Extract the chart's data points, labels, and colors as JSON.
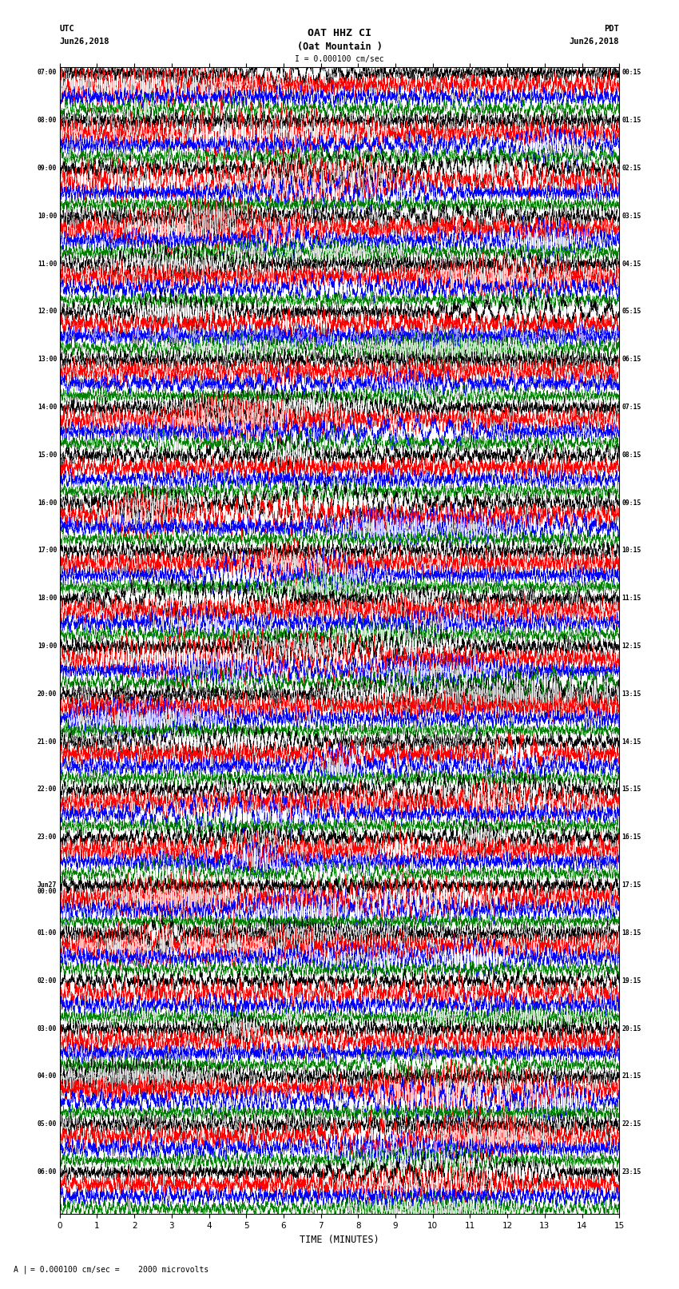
{
  "title_line1": "OAT HHZ CI",
  "title_line2": "(Oat Mountain )",
  "scale_label": "0.000100 cm/sec",
  "footer_label": "= 0.000100 cm/sec =    2000 microvolts",
  "utc_label": "UTC",
  "utc_date": "Jun26,2018",
  "pdt_label": "PDT",
  "pdt_date": "Jun26,2018",
  "xlabel": "TIME (MINUTES)",
  "left_times": [
    "07:00",
    "08:00",
    "09:00",
    "10:00",
    "11:00",
    "12:00",
    "13:00",
    "14:00",
    "15:00",
    "16:00",
    "17:00",
    "18:00",
    "19:00",
    "20:00",
    "21:00",
    "22:00",
    "23:00",
    "Jun27\n00:00",
    "01:00",
    "02:00",
    "03:00",
    "04:00",
    "05:00",
    "06:00"
  ],
  "right_times": [
    "00:15",
    "01:15",
    "02:15",
    "03:15",
    "04:15",
    "05:15",
    "06:15",
    "07:15",
    "08:15",
    "09:15",
    "10:15",
    "11:15",
    "12:15",
    "13:15",
    "14:15",
    "15:15",
    "16:15",
    "17:15",
    "18:15",
    "19:15",
    "20:15",
    "21:15",
    "22:15",
    "23:15"
  ],
  "colors": [
    "black",
    "red",
    "blue",
    "green"
  ],
  "bg_color": "white",
  "n_rows": 24,
  "traces_per_row": 4,
  "n_minutes": 15,
  "noise_seed": 42
}
